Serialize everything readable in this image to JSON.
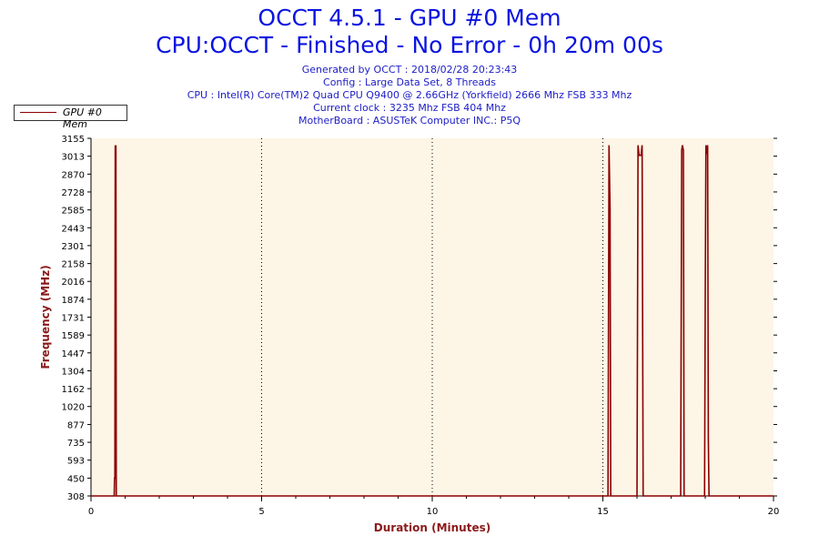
{
  "header": {
    "title": "OCCT 4.5.1 - GPU #0 Mem",
    "subtitle": "CPU:OCCT - Finished - No Error - 0h 20m 00s",
    "generated": "Generated by OCCT : 2018/02/28 20:23:43",
    "config": "Config : Large Data Set, 8 Threads",
    "cpu": "CPU : Intel(R) Core(TM)2 Quad CPU Q9400 @ 2.66GHz (Yorkfield) 2666 Mhz FSB 333 Mhz",
    "clock": "Current clock : 3235 Mhz FSB 404 Mhz",
    "motherboard": "MotherBoard : ASUSTeK Computer INC.: P5Q"
  },
  "legend": {
    "label": "GPU #0 Mem"
  },
  "colors": {
    "series": "#8b0000",
    "plot_bg": "#fdf5e6",
    "axis_label": "#8b1a1a",
    "title": "#0a14e0"
  },
  "chart_data": {
    "type": "line",
    "xlabel": "Duration (Minutes)",
    "ylabel": "Frequency (MHz)",
    "xlim": [
      0,
      20
    ],
    "ylim": [
      308,
      3155
    ],
    "xticks": [
      0,
      5,
      10,
      15,
      20
    ],
    "yticks": [
      308,
      450,
      593,
      735,
      877,
      1020,
      1162,
      1304,
      1447,
      1589,
      1731,
      1874,
      2016,
      2158,
      2301,
      2443,
      2585,
      2728,
      2870,
      3013,
      3155
    ],
    "grid": "vertical dotted",
    "legend_position": "top-left",
    "series": [
      {
        "name": "GPU #0 Mem",
        "points": [
          [
            0,
            308
          ],
          [
            0.68,
            308
          ],
          [
            0.69,
            450
          ],
          [
            0.7,
            450
          ],
          [
            0.71,
            3100
          ],
          [
            0.72,
            2600
          ],
          [
            0.73,
            3100
          ],
          [
            0.74,
            308
          ],
          [
            15.15,
            308
          ],
          [
            15.18,
            3100
          ],
          [
            15.21,
            2600
          ],
          [
            15.23,
            308
          ],
          [
            16.0,
            308
          ],
          [
            16.03,
            3100
          ],
          [
            16.06,
            3020
          ],
          [
            16.12,
            3020
          ],
          [
            16.15,
            3100
          ],
          [
            16.18,
            308
          ],
          [
            17.28,
            308
          ],
          [
            17.31,
            3060
          ],
          [
            17.33,
            3100
          ],
          [
            17.36,
            3060
          ],
          [
            17.38,
            308
          ],
          [
            17.98,
            308
          ],
          [
            18.0,
            1900
          ],
          [
            18.02,
            3100
          ],
          [
            18.05,
            3030
          ],
          [
            18.07,
            3100
          ],
          [
            18.09,
            780
          ],
          [
            18.11,
            308
          ],
          [
            20,
            308
          ]
        ]
      }
    ]
  }
}
